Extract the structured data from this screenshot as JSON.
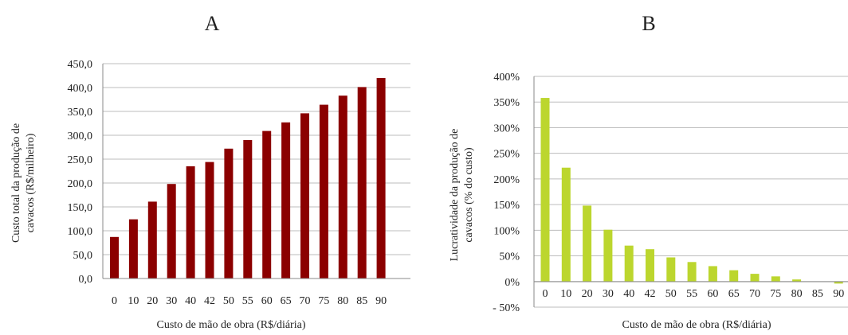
{
  "chart_data": [
    {
      "type": "bar",
      "panel": "A",
      "categories": [
        "0",
        "10",
        "20",
        "30",
        "40",
        "42",
        "50",
        "55",
        "60",
        "65",
        "70",
        "75",
        "80",
        "85",
        "90"
      ],
      "values": [
        87,
        124,
        161,
        198,
        235,
        244,
        272,
        290,
        309,
        327,
        346,
        364,
        383,
        401,
        420
      ],
      "y_ticks": [
        "0,0",
        "50,0",
        "100,0",
        "150,0",
        "200,0",
        "250,0",
        "300,0",
        "350,0",
        "400,0",
        "450,0"
      ],
      "ylim": [
        0,
        450
      ],
      "xlabel": "Custo de mão de obra (R$/diária)",
      "ylabel_lines": [
        "Custo total da produção de",
        "cavacos (R$/milheiro)"
      ],
      "color": "#8b0000",
      "grid": true
    },
    {
      "type": "bar",
      "panel": "B",
      "categories": [
        "0",
        "10",
        "20",
        "30",
        "40",
        "42",
        "50",
        "55",
        "60",
        "65",
        "70",
        "75",
        "80",
        "85",
        "90"
      ],
      "values": [
        358,
        222,
        148,
        101,
        70,
        63,
        47,
        38,
        30,
        22,
        15,
        10,
        4,
        0,
        -4
      ],
      "y_ticks": [
        "- 50%",
        "0%",
        "50%",
        "100%",
        "150%",
        "200%",
        "250%",
        "300%",
        "350%",
        "400%"
      ],
      "ylim": [
        -50,
        400
      ],
      "xlabel": "Custo de mão de obra (R$/diária)",
      "ylabel_lines": [
        "Lucratividade da produção de",
        "cavacos (% do custo)"
      ],
      "color": "#bcd62e",
      "grid": true
    }
  ]
}
